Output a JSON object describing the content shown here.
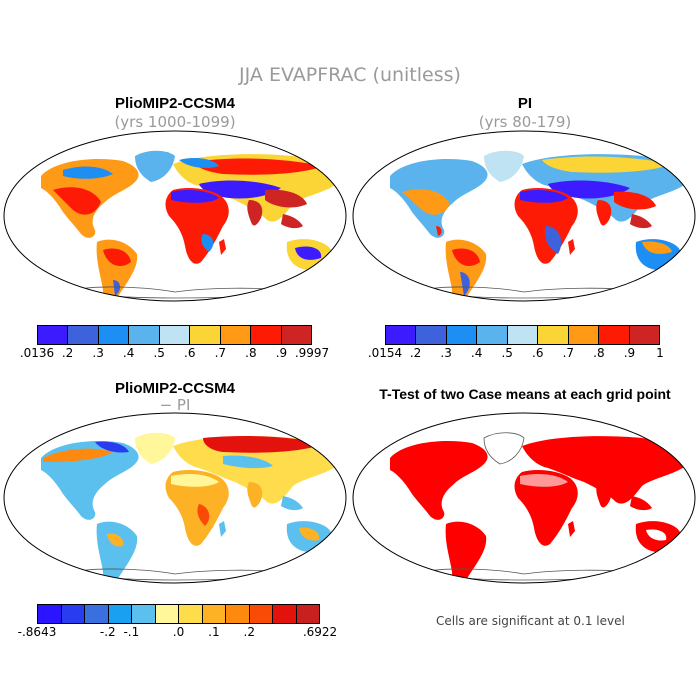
{
  "figure": {
    "title": "JJA EVAPFRAC (unitless)"
  },
  "panels": [
    {
      "id": "plio",
      "title": "PlioMIP2-CCSM4",
      "subtitle": "(yrs 1000-1099)"
    },
    {
      "id": "pi",
      "title": "PI",
      "subtitle": "(yrs 80-179)"
    },
    {
      "id": "diff",
      "title": "PlioMIP2-CCSM4",
      "subtitle": "− PI"
    },
    {
      "id": "ttest",
      "title": "T-Test of two Case means at each grid point",
      "subtitle": ""
    }
  ],
  "colorbars": {
    "plio": {
      "colors": [
        "#3c1cff",
        "#3d62dc",
        "#1d8ef3",
        "#5ab3ec",
        "#bfe3f2",
        "#fbd435",
        "#fe9a16",
        "#fd1b05",
        "#cf2424"
      ],
      "labels": [
        ".0136",
        ".2",
        ".3",
        ".4",
        ".5",
        ".6",
        ".7",
        ".8",
        ".9",
        ".9997"
      ]
    },
    "pi": {
      "colors": [
        "#3c1cff",
        "#3d62dc",
        "#1d8ef3",
        "#5ab3ec",
        "#bfe3f2",
        "#fbd435",
        "#fe9a16",
        "#fd1b05",
        "#cf2424"
      ],
      "labels": [
        ".0154",
        ".2",
        ".3",
        ".4",
        ".5",
        ".6",
        ".7",
        ".8",
        ".9",
        "1"
      ]
    },
    "diff": {
      "colors": [
        "#2b14ff",
        "#2a3cf0",
        "#3a6fe0",
        "#1aa0f0",
        "#5cc0ee",
        "#fff799",
        "#fedc4c",
        "#fdb226",
        "#fd8a0e",
        "#fa4b06",
        "#e4120c",
        "#c8201e"
      ],
      "labels": [
        "-.8643",
        "-.2",
        "-.1",
        ".0",
        ".1",
        ".2",
        ".6922"
      ]
    }
  },
  "significance_note": "Cells are significant at 0.1 level",
  "chart_data": [
    {
      "type": "map",
      "panel": "PlioMIP2-CCSM4 (yrs 1000-1099)",
      "variable": "JJA EVAPFRAC",
      "units": "unitless",
      "range": [
        0.0136,
        0.9997
      ],
      "levels": [
        0.2,
        0.3,
        0.4,
        0.5,
        0.6,
        0.7,
        0.8,
        0.9
      ]
    },
    {
      "type": "map",
      "panel": "PI (yrs 80-179)",
      "variable": "JJA EVAPFRAC",
      "units": "unitless",
      "range": [
        0.0154,
        1
      ],
      "levels": [
        0.2,
        0.3,
        0.4,
        0.5,
        0.6,
        0.7,
        0.8,
        0.9
      ]
    },
    {
      "type": "map",
      "panel": "PlioMIP2-CCSM4 − PI",
      "variable": "JJA EVAPFRAC difference",
      "range": [
        -0.8643,
        0.6922
      ]
    },
    {
      "type": "map",
      "panel": "T-Test of two Case means at each grid point",
      "significance_level": 0.1
    }
  ]
}
